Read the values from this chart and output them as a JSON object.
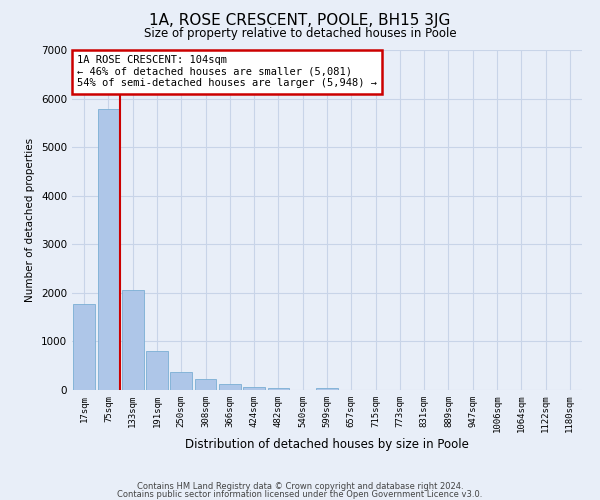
{
  "title": "1A, ROSE CRESCENT, POOLE, BH15 3JG",
  "subtitle": "Size of property relative to detached houses in Poole",
  "xlabel": "Distribution of detached houses by size in Poole",
  "ylabel": "Number of detached properties",
  "bar_labels": [
    "17sqm",
    "75sqm",
    "133sqm",
    "191sqm",
    "250sqm",
    "308sqm",
    "366sqm",
    "424sqm",
    "482sqm",
    "540sqm",
    "599sqm",
    "657sqm",
    "715sqm",
    "773sqm",
    "831sqm",
    "889sqm",
    "947sqm",
    "1006sqm",
    "1064sqm",
    "1122sqm",
    "1180sqm"
  ],
  "bar_heights": [
    1780,
    5780,
    2060,
    810,
    365,
    235,
    115,
    60,
    40,
    0,
    45,
    0,
    0,
    0,
    0,
    0,
    0,
    0,
    0,
    0,
    0
  ],
  "bar_color": "#aec6e8",
  "bar_edge_color": "#7bafd4",
  "property_sqm": 104,
  "annotation_text": "1A ROSE CRESCENT: 104sqm\n← 46% of detached houses are smaller (5,081)\n54% of semi-detached houses are larger (5,948) →",
  "annotation_box_color": "#ffffff",
  "annotation_box_edge_color": "#cc0000",
  "property_line_color": "#cc0000",
  "ylim": [
    0,
    7000
  ],
  "yticks": [
    0,
    1000,
    2000,
    3000,
    4000,
    5000,
    6000,
    7000
  ],
  "grid_color": "#c8d4e8",
  "background_color": "#e8eef8",
  "footer_line1": "Contains HM Land Registry data © Crown copyright and database right 2024.",
  "footer_line2": "Contains public sector information licensed under the Open Government Licence v3.0."
}
